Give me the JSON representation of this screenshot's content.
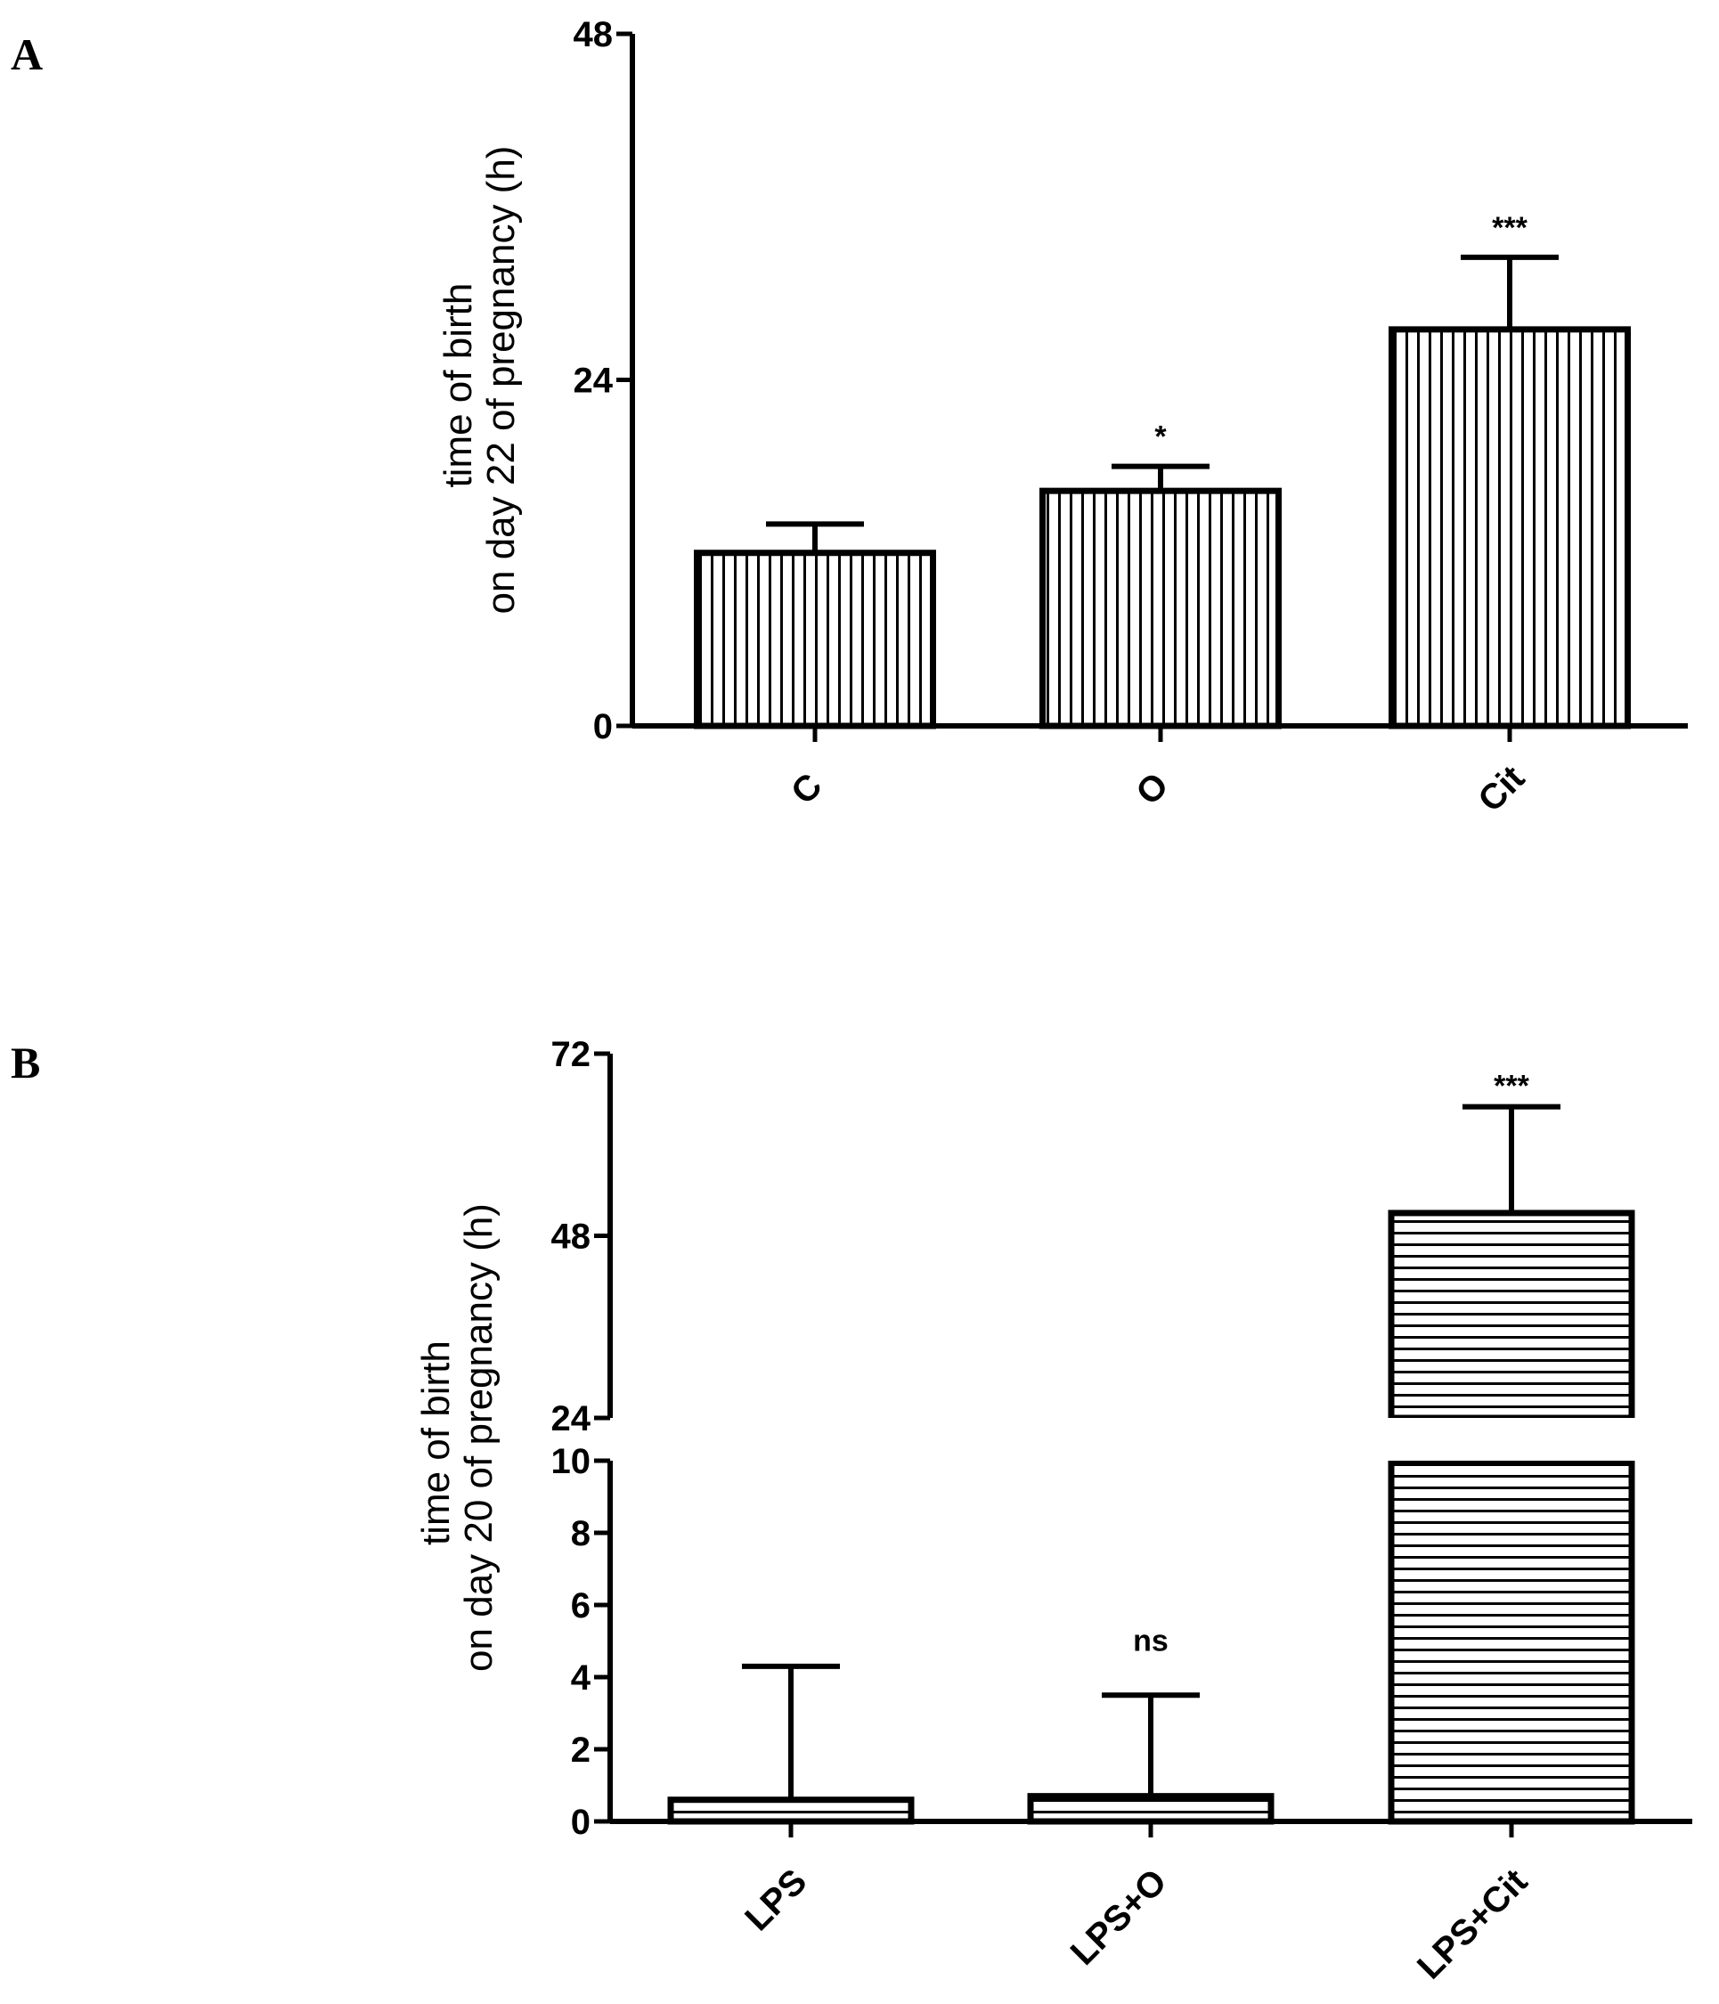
{
  "chart_data": [
    {
      "panel": "A",
      "type": "bar",
      "pattern": "vertical-hatch",
      "ylabel": [
        "time of birth",
        "on day 22 of pregnancy (h)"
      ],
      "ylim": [
        0,
        48
      ],
      "yticks": [
        "0",
        "24",
        "48"
      ],
      "categories": [
        "C",
        "O",
        "Cit"
      ],
      "values": [
        12,
        16.3,
        27.5
      ],
      "error_upper": [
        14,
        18,
        32.5
      ],
      "significance": [
        "",
        "*",
        "***"
      ]
    },
    {
      "panel": "B",
      "type": "bar",
      "pattern": "horizontal-hatch",
      "ylabel": [
        "time of birth",
        "on day 20 of pregnancy (h)"
      ],
      "axis_break": true,
      "lower_ylim": [
        0,
        10
      ],
      "upper_ylim": [
        24,
        72
      ],
      "yticks_lower": [
        "0",
        "2",
        "4",
        "6",
        "8",
        "10"
      ],
      "yticks_upper": [
        "24",
        "48",
        "72"
      ],
      "categories": [
        "LPS",
        "LPS+O",
        "LPS+Cit"
      ],
      "values": [
        0.6,
        0.7,
        51
      ],
      "error_upper": [
        4.3,
        3.5,
        65
      ],
      "significance": [
        "",
        "ns",
        "***"
      ]
    }
  ]
}
